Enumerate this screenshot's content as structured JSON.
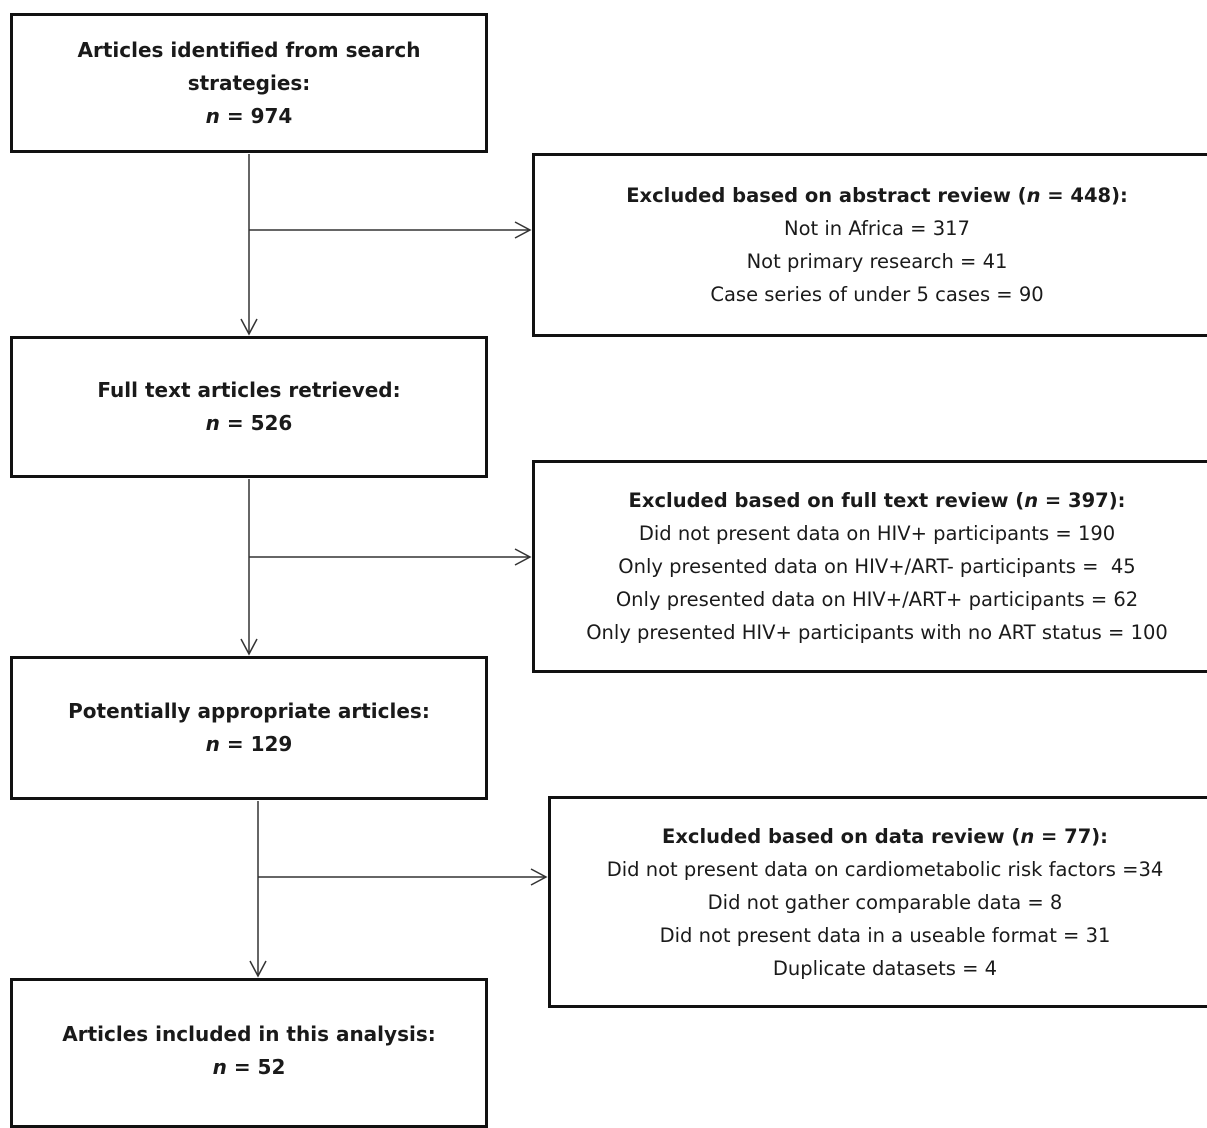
{
  "boxes": {
    "identified": {
      "line1": "Articles identified from search",
      "line2": "strategies:",
      "n_label": "n",
      "n_value": " = 974"
    },
    "retrieved": {
      "line1": "Full text articles retrieved:",
      "n_label": "n",
      "n_value": " = 526"
    },
    "potential": {
      "line1": "Potentially appropriate articles:",
      "n_label": "n",
      "n_value": " = 129"
    },
    "included": {
      "line1": "Articles included in this analysis:",
      "n_label": "n",
      "n_value": " = 52"
    }
  },
  "exclusions": {
    "abstract": {
      "head_pre": "Excluded based on abstract review (",
      "n_label": "n",
      "head_post": " = 448):",
      "items": [
        "Not in Africa = 317",
        "Not primary research = 41",
        "Case series of under 5 cases = 90"
      ]
    },
    "fulltext": {
      "head_pre": "Excluded based on full text review (",
      "n_label": "n",
      "head_post": " = 397):",
      "items": [
        "Did not present data on HIV+ participants = 190",
        "Only presented data on HIV+/ART- participants =  45",
        "Only presented data on HIV+/ART+ participants = 62",
        "Only presented HIV+ participants with no ART status = 100"
      ]
    },
    "data": {
      "head_pre": "Excluded based on data review (",
      "n_label": "n",
      "head_post": " = 77):",
      "items": [
        "Did not present data on cardiometabolic risk factors =34",
        "Did not gather comparable data = 8",
        "Did not present data in a useable format = 31",
        "Duplicate datasets = 4"
      ]
    }
  }
}
